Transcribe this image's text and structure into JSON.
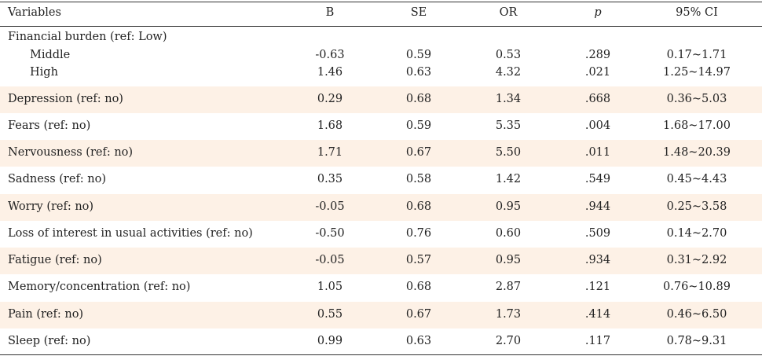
{
  "headers": {
    "variables": "Variables",
    "b": "B",
    "se": "SE",
    "or": "OR",
    "p": "p",
    "ci": "95% CI"
  },
  "financial": {
    "label": "Financial burden (ref: Low)",
    "middle": {
      "label": "Middle",
      "b": "-0.63",
      "se": "0.59",
      "or": "0.53",
      "p": ".289",
      "ci": "0.17~1.71"
    },
    "high": {
      "label": "High",
      "b": "1.46",
      "se": "0.63",
      "or": "4.32",
      "p": ".021",
      "ci": "1.25~14.97"
    }
  },
  "rows": [
    {
      "label": "Depression (ref: no)",
      "b": "0.29",
      "se": "0.68",
      "or": "1.34",
      "p": ".668",
      "ci": "0.36~5.03"
    },
    {
      "label": "Fears (ref: no)",
      "b": "1.68",
      "se": "0.59",
      "or": "5.35",
      "p": ".004",
      "ci": "1.68~17.00"
    },
    {
      "label": "Nervousness (ref: no)",
      "b": "1.71",
      "se": "0.67",
      "or": "5.50",
      "p": ".011",
      "ci": "1.48~20.39"
    },
    {
      "label": "Sadness (ref: no)",
      "b": "0.35",
      "se": "0.58",
      "or": "1.42",
      "p": ".549",
      "ci": "0.45~4.43"
    },
    {
      "label": "Worry (ref: no)",
      "b": "-0.05",
      "se": "0.68",
      "or": "0.95",
      "p": ".944",
      "ci": "0.25~3.58"
    },
    {
      "label": "Loss of interest in usual activities (ref: no)",
      "b": "-0.50",
      "se": "0.76",
      "or": "0.60",
      "p": ".509",
      "ci": "0.14~2.70"
    },
    {
      "label": "Fatigue (ref: no)",
      "b": "-0.05",
      "se": "0.57",
      "or": "0.95",
      "p": ".934",
      "ci": "0.31~2.92"
    },
    {
      "label": "Memory/concentration (ref: no)",
      "b": "1.05",
      "se": "0.68",
      "or": "2.87",
      "p": ".121",
      "ci": "0.76~10.89"
    },
    {
      "label": "Pain (ref: no)",
      "b": "0.55",
      "se": "0.67",
      "or": "1.73",
      "p": ".414",
      "ci": "0.46~6.50"
    },
    {
      "label": "Sleep (ref: no)",
      "b": "0.99",
      "se": "0.63",
      "or": "2.70",
      "p": ".117",
      "ci": "0.78~9.31"
    }
  ]
}
